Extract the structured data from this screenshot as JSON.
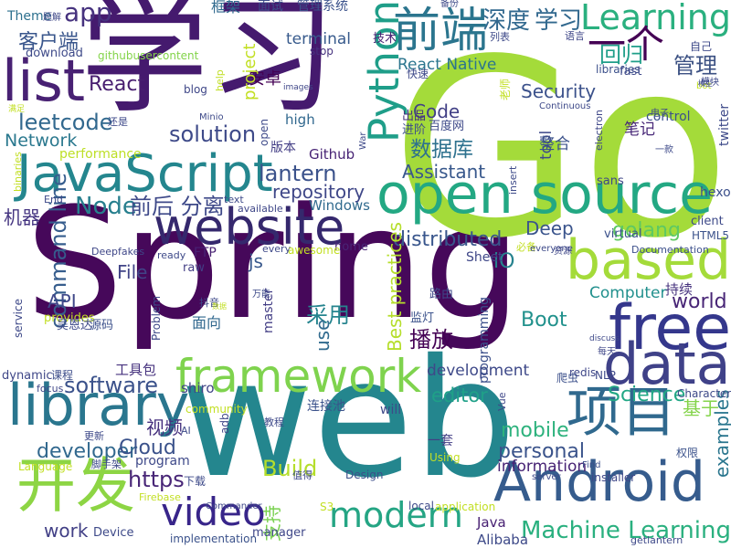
{
  "wordcloud": {
    "words": [
      {
        "text": "Spring",
        "color": "#46085a"
      },
      {
        "text": "web",
        "color": "#24868e"
      },
      {
        "text": "Go",
        "color": "#a4db3a"
      },
      {
        "text": "学习",
        "color": "#451a6e"
      },
      {
        "text": "JavaScript",
        "color": "#24868e"
      },
      {
        "text": "open source",
        "color": "#23a883"
      },
      {
        "text": "website",
        "color": "#35286d"
      },
      {
        "text": "framework",
        "color": "#7fd34e"
      },
      {
        "text": "library",
        "color": "#2a768e"
      },
      {
        "text": "free",
        "color": "#34378c"
      },
      {
        "text": "data",
        "color": "#3f4188"
      },
      {
        "text": "Android",
        "color": "#365c8d"
      },
      {
        "text": "项目",
        "color": "#30698e"
      },
      {
        "text": "开发",
        "color": "#8dd544"
      },
      {
        "text": "list",
        "color": "#482173"
      },
      {
        "text": "based",
        "color": "#a4db3a"
      },
      {
        "text": "Learning",
        "color": "#2ab07f"
      },
      {
        "text": "Python",
        "color": "#1f9e89"
      },
      {
        "text": "前端",
        "color": "#2b758e"
      },
      {
        "text": "modern",
        "color": "#25a584"
      },
      {
        "text": "video",
        "color": "#38258a"
      },
      {
        "text": "Machine Learning",
        "color": "#2ab07f"
      },
      {
        "text": "深度",
        "color": "#31688e"
      },
      {
        "text": "学习",
        "color": "#31688e"
      },
      {
        "text": "一个",
        "color": "#440154"
      },
      {
        "text": "管理",
        "color": "#3c5183"
      },
      {
        "text": "回归",
        "color": "#1f9e89"
      },
      {
        "text": "app",
        "color": "#46327e"
      },
      {
        "text": "客户端",
        "color": "#39568c"
      },
      {
        "text": "Theme",
        "color": "#2d708e"
      },
      {
        "text": "框架",
        "color": "#306a8e"
      },
      {
        "text": "面试",
        "color": "#3d4d8a"
      },
      {
        "text": "管理系统",
        "color": "#3b528b"
      },
      {
        "text": "terminal",
        "color": "#375a8c"
      },
      {
        "text": "技术",
        "color": "#482374"
      },
      {
        "text": "React Native",
        "color": "#2b758e"
      },
      {
        "text": "Code",
        "color": "#424086"
      },
      {
        "text": "Security",
        "color": "#3b518b"
      },
      {
        "text": "React",
        "color": "#481e70"
      },
      {
        "text": "安卓",
        "color": "#440154"
      },
      {
        "text": "leetcode",
        "color": "#31688e"
      },
      {
        "text": "solution",
        "color": "#3e4a89"
      },
      {
        "text": "Network",
        "color": "#2a788e"
      },
      {
        "text": "数据库",
        "color": "#2d718e"
      },
      {
        "text": "Assistant",
        "color": "#38588c"
      },
      {
        "text": "lantern",
        "color": "#3b528b"
      },
      {
        "text": "repository",
        "color": "#3f4788"
      },
      {
        "text": "Node",
        "color": "#277f8e"
      },
      {
        "text": "前后 分离",
        "color": "#3e4989"
      },
      {
        "text": "机器",
        "color": "#453581"
      },
      {
        "text": "distributed",
        "color": "#39568c"
      },
      {
        "text": "golang",
        "color": "#5ec962"
      },
      {
        "text": "Deep",
        "color": "#3a548c"
      },
      {
        "text": "command line",
        "color": "#365d8d"
      },
      {
        "text": "File",
        "color": "#414487"
      },
      {
        "text": "js",
        "color": "#38588c"
      },
      {
        "text": "iO",
        "color": "#26828e"
      },
      {
        "text": "world",
        "color": "#482576"
      },
      {
        "text": "API",
        "color": "#3f4889"
      },
      {
        "text": "Boot",
        "color": "#21918c"
      },
      {
        "text": "Computer",
        "color": "#21908d"
      },
      {
        "text": "采用",
        "color": "#25848e"
      },
      {
        "text": "Best practices",
        "color": "#b5de2b"
      },
      {
        "text": "播放",
        "color": "#440154"
      },
      {
        "text": "use",
        "color": "#306a8e"
      },
      {
        "text": "software",
        "color": "#3b528b"
      },
      {
        "text": "editor",
        "color": "#1fa088"
      },
      {
        "text": "development",
        "color": "#3e4989"
      },
      {
        "text": "Science",
        "color": "#22a785"
      },
      {
        "text": "基于",
        "color": "#84d44b"
      },
      {
        "text": "mobile",
        "color": "#2db27d"
      },
      {
        "text": "personal",
        "color": "#3a538b"
      },
      {
        "text": "information",
        "color": "#482475"
      },
      {
        "text": "examples",
        "color": "#2a768e"
      },
      {
        "text": "developer",
        "color": "#31688e"
      },
      {
        "text": "Cloud",
        "color": "#3b528b"
      },
      {
        "text": "https",
        "color": "#482677"
      },
      {
        "text": "Build",
        "color": "#b5de2b"
      },
      {
        "text": "视频",
        "color": "#46307e"
      },
      {
        "text": "支持",
        "color": "#7ad151"
      },
      {
        "text": "work",
        "color": "#424086"
      },
      {
        "text": "Java",
        "color": "#482173"
      },
      {
        "text": "Alibaba",
        "color": "#3e4a89"
      },
      {
        "text": "shiro",
        "color": "#414487"
      },
      {
        "text": "面向",
        "color": "#31688e"
      },
      {
        "text": "Sheet",
        "color": "#3f4788"
      },
      {
        "text": "hexo",
        "color": "#3c508b"
      },
      {
        "text": "control",
        "color": "#3b518b"
      },
      {
        "text": "twitter",
        "color": "#3e4a89"
      },
      {
        "text": "笔记",
        "color": "#482878"
      },
      {
        "text": "tool",
        "color": "#3e4989"
      },
      {
        "text": "整合",
        "color": "#3b528b"
      },
      {
        "text": "Windows",
        "color": "#306a8e"
      },
      {
        "text": "virtual",
        "color": "#3b518b"
      },
      {
        "text": "持续",
        "color": "#46327e"
      },
      {
        "text": "redis",
        "color": "#3f4788"
      },
      {
        "text": "Problem",
        "color": "#3e4a89"
      },
      {
        "text": "high",
        "color": "#31688e"
      },
      {
        "text": "performance",
        "color": "#bddf26"
      },
      {
        "text": "版本",
        "color": "#433e85"
      },
      {
        "text": "Github",
        "color": "#482475"
      },
      {
        "text": "出品",
        "color": "#46327e"
      },
      {
        "text": "进阶",
        "color": "#3d4d8a"
      },
      {
        "text": "百度网",
        "color": "#3e4a89"
      },
      {
        "text": "download",
        "color": "#3e4a89"
      },
      {
        "text": "githubusercontent",
        "color": "#84d44b"
      },
      {
        "text": "stop",
        "color": "#46327e"
      },
      {
        "text": "blog",
        "color": "#3f4788"
      },
      {
        "text": "help",
        "color": "#c0df25"
      },
      {
        "text": "project",
        "color": "#c2df23"
      },
      {
        "text": "libraries",
        "color": "#3c508b"
      },
      {
        "text": "fast",
        "color": "#3e4989"
      },
      {
        "text": "client",
        "color": "#3e4a89"
      },
      {
        "text": "HTML5",
        "color": "#3b528b"
      },
      {
        "text": "Documentation",
        "color": "#3c508b"
      },
      {
        "text": "FTP",
        "color": "#482173"
      },
      {
        "text": "raw",
        "color": "#433e85"
      },
      {
        "text": "home",
        "color": "#482475"
      },
      {
        "text": "master",
        "color": "#433e85"
      },
      {
        "text": "路由",
        "color": "#3e4989"
      },
      {
        "text": "监灯",
        "color": "#3b528b"
      },
      {
        "text": "programming",
        "color": "#3c508b"
      },
      {
        "text": "provides",
        "color": "#c2df23"
      },
      {
        "text": "吴恩达",
        "color": "#3e4a89"
      },
      {
        "text": "源码",
        "color": "#3c508b"
      },
      {
        "text": "service",
        "color": "#3e4989"
      },
      {
        "text": "dynamic",
        "color": "#3f4788"
      },
      {
        "text": "课程",
        "color": "#3d4d8a"
      },
      {
        "text": "工具包",
        "color": "#46327e"
      },
      {
        "text": "连接池",
        "color": "#3b528b"
      },
      {
        "text": "community",
        "color": "#c2df23"
      },
      {
        "text": "will",
        "color": "#3e4a89"
      },
      {
        "text": "Vue",
        "color": "#3f4788"
      },
      {
        "text": "NLP",
        "color": "#3e4989"
      },
      {
        "text": "爬虫",
        "color": "#3c508b"
      },
      {
        "text": "Character",
        "color": "#3e4a89"
      },
      {
        "text": "一套",
        "color": "#433e85"
      },
      {
        "text": "Using",
        "color": "#c2df23"
      },
      {
        "text": "权限",
        "color": "#3b528b"
      },
      {
        "text": "Language",
        "color": "#c2df23"
      },
      {
        "text": "program",
        "color": "#3e4989"
      },
      {
        "text": "Design",
        "color": "#3c508b"
      },
      {
        "text": "下载",
        "color": "#3e4a89"
      },
      {
        "text": "Commander",
        "color": "#3f4788"
      },
      {
        "text": "S3",
        "color": "#c2df23"
      },
      {
        "text": "local",
        "color": "#3e4989"
      },
      {
        "text": "application",
        "color": "#c2df23"
      },
      {
        "text": "Device",
        "color": "#3e4a89"
      },
      {
        "text": "manager",
        "color": "#3f4788"
      },
      {
        "text": "implementation",
        "color": "#3b528b"
      },
      {
        "text": "getlantern",
        "color": "#3e4989"
      },
      {
        "text": "installer",
        "color": "#3f4788"
      },
      {
        "text": "server",
        "color": "#3e4a89"
      },
      {
        "text": "Find",
        "color": "#3c508b"
      },
      {
        "text": "Firebase",
        "color": "#c2df23"
      },
      {
        "text": "脚手架",
        "color": "#3e4a89"
      },
      {
        "text": "更新",
        "color": "#3e4989"
      },
      {
        "text": "AI",
        "color": "#3e4a89"
      },
      {
        "text": "adb",
        "color": "#3f4788"
      },
      {
        "text": "教程",
        "color": "#3e4989"
      },
      {
        "text": "值得",
        "color": "#3e4a89"
      },
      {
        "text": "binaries",
        "color": "#c2df23"
      },
      {
        "text": "End",
        "color": "#3e4989"
      },
      {
        "text": "text",
        "color": "#3e4a89"
      },
      {
        "text": "available",
        "color": "#3f4788"
      },
      {
        "text": "every",
        "color": "#3e4989"
      },
      {
        "text": "awesome",
        "color": "#c2df23"
      },
      {
        "text": "ready",
        "color": "#3e4a89"
      },
      {
        "text": "Deepfakes",
        "color": "#3f4788"
      },
      {
        "text": "必备",
        "color": "#c2df23"
      },
      {
        "text": "everyone",
        "color": "#3e4a89"
      },
      {
        "text": "资源",
        "color": "#3f4788"
      },
      {
        "text": "模块",
        "color": "#3e4989"
      },
      {
        "text": "一款",
        "color": "#3e4a89"
      },
      {
        "text": "电子",
        "color": "#3e4a89"
      },
      {
        "text": "electron",
        "color": "#3f4788"
      },
      {
        "text": "Continuous",
        "color": "#3e4989"
      },
      {
        "text": "列表",
        "color": "#3e4a89"
      },
      {
        "text": "老师",
        "color": "#c2df23"
      },
      {
        "text": "快速",
        "color": "#3e4989"
      },
      {
        "text": "备份",
        "color": "#3e4a89"
      },
      {
        "text": "题解",
        "color": "#3f4788"
      },
      {
        "text": "还是",
        "color": "#3e4989"
      },
      {
        "text": "满足",
        "color": "#c2df23"
      },
      {
        "text": "Minio",
        "color": "#3e4a89"
      },
      {
        "text": "images",
        "color": "#3f4788"
      },
      {
        "text": "War",
        "color": "#3e4989"
      },
      {
        "text": "insert",
        "color": "#3e4a89"
      },
      {
        "text": "focus",
        "color": "#3f4788"
      },
      {
        "text": "抖音",
        "color": "#3e4989"
      },
      {
        "text": "数据",
        "color": "#c2df23"
      },
      {
        "text": "万能",
        "color": "#3e4a89"
      },
      {
        "text": "每天",
        "color": "#3f4788"
      },
      {
        "text": "discuss",
        "color": "#3e4989"
      },
      {
        "text": "open",
        "color": "#3e4a89"
      },
      {
        "text": "语言",
        "color": "#3f4788"
      },
      {
        "text": "自己",
        "color": "#3e4a89"
      },
      {
        "text": "sans",
        "color": "#3f4788"
      },
      {
        "text": "bot",
        "color": "#c2df23"
      },
      {
        "text": "模型",
        "color": "#3e4989"
      },
      {
        "text": "链接",
        "color": "#3e4a89"
      }
    ]
  }
}
